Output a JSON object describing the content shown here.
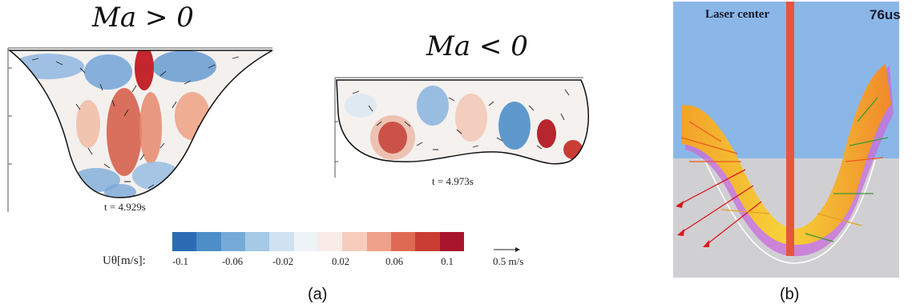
{
  "panel_a": {
    "left_title": "Ma > 0",
    "right_title": "Ma < 0",
    "left_time": "t = 4.929s",
    "right_time": "t = 4.973s",
    "label": "(a)"
  },
  "colorbar": {
    "quantity_label": "Uθ[m/s]:",
    "ticks": [
      "-0.1",
      "-0.06",
      "-0.02",
      "0.02",
      "0.06",
      "0.1"
    ],
    "colors": [
      "#2b6cb4",
      "#4c8ec8",
      "#76abd8",
      "#a6c9e6",
      "#cfe2f1",
      "#eef3f7",
      "#f9ebe6",
      "#f6cdbc",
      "#eea08a",
      "#df6a53",
      "#c93d33",
      "#a8152a"
    ],
    "scale_arrow_label": "0.5 m/s"
  },
  "panel_b": {
    "laser_label": "Laser center",
    "time_label": "76us",
    "label": "(b)",
    "colors": {
      "sky": "#8ab7e8",
      "substrate": "#d0d0d2",
      "laser": "#e6563c"
    }
  }
}
